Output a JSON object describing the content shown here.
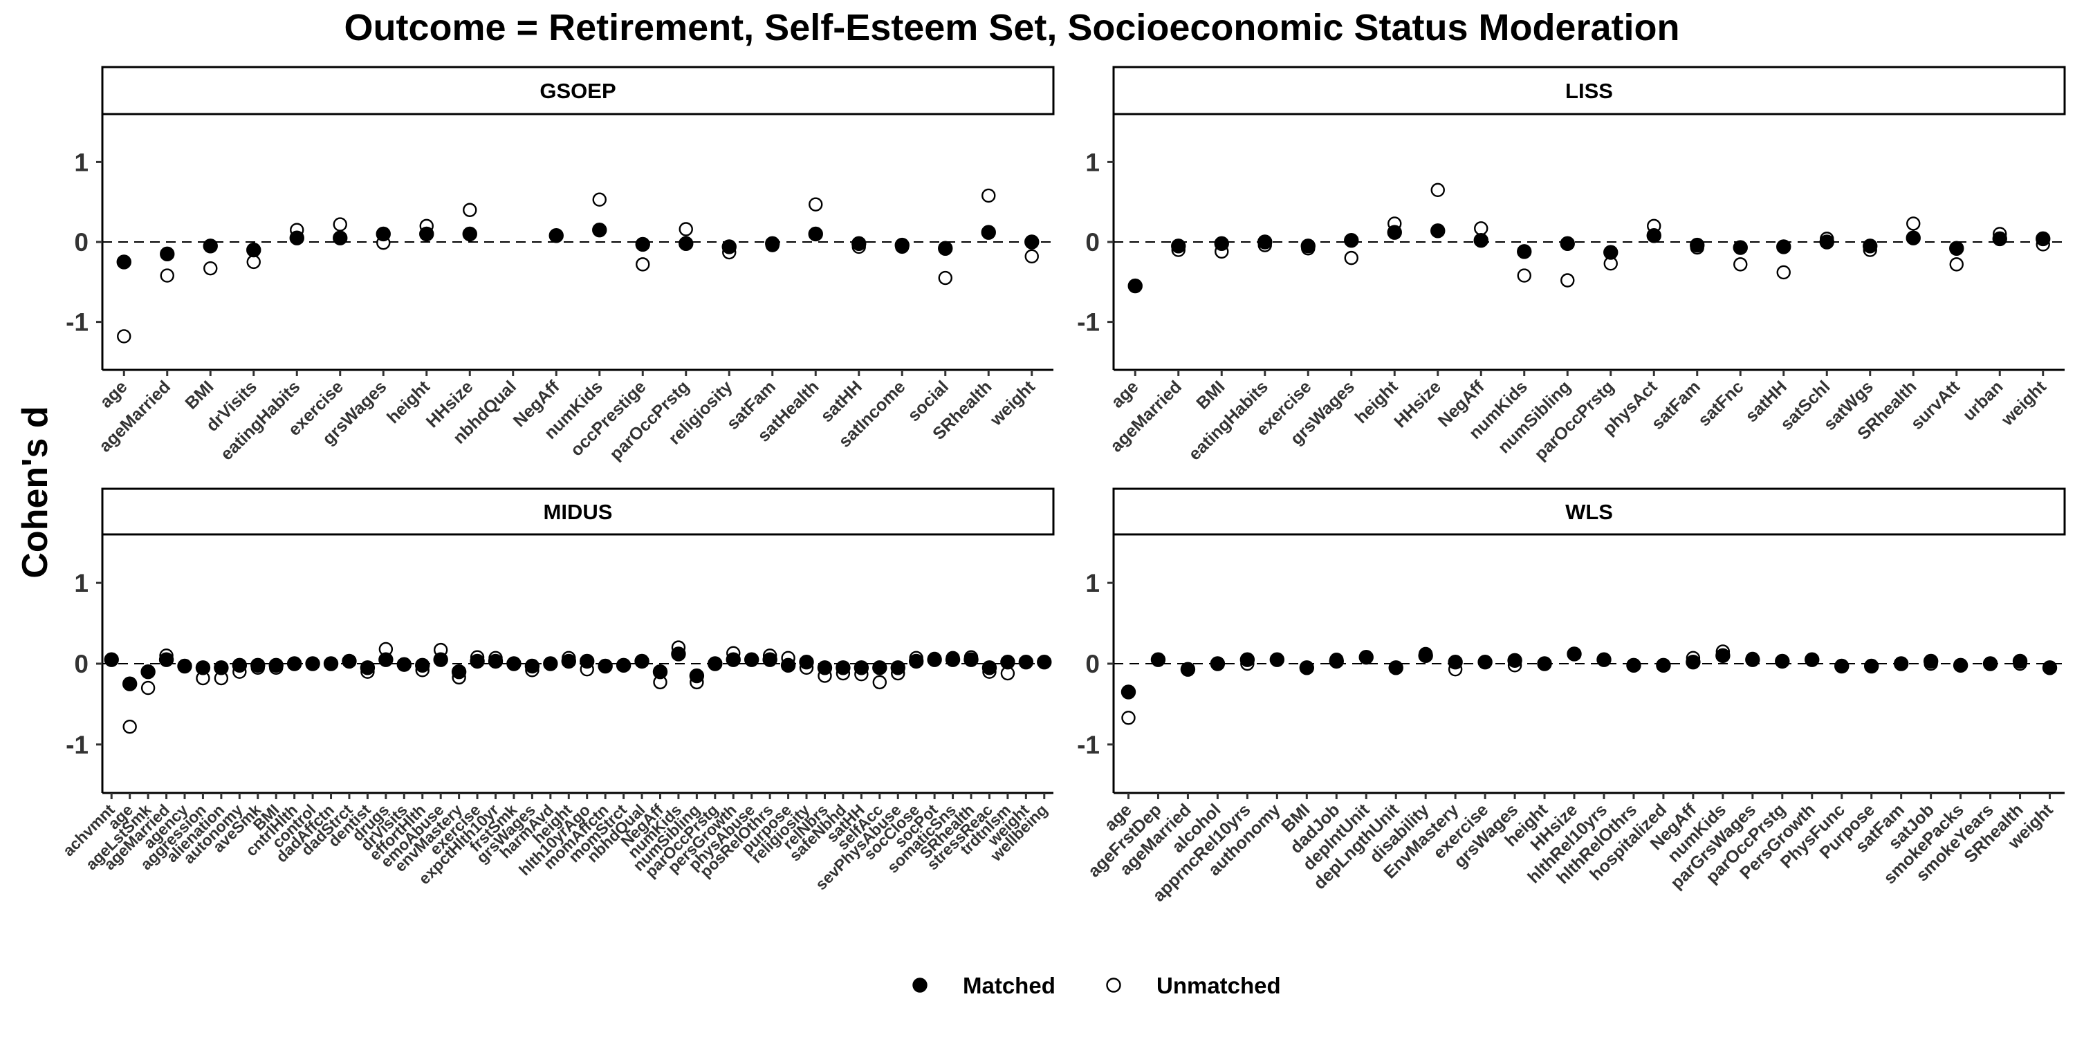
{
  "chart_data": {
    "type": "scatter",
    "title": "Outcome = Retirement, Self-Esteem Set, Socioeconomic Status Moderation",
    "ylabel": "Cohen's d",
    "ylim": [
      -1.6,
      1.6
    ],
    "yticks": [
      -1,
      0,
      1
    ],
    "reference_line": 0,
    "legend": {
      "position": "bottom",
      "entries": [
        "Matched",
        "Unmatched"
      ]
    },
    "series_colors": {
      "Matched": "#000000",
      "Unmatched": "#ffffff"
    },
    "panels": [
      {
        "name": "GSOEP",
        "categories": [
          "age",
          "ageMarried",
          "BMI",
          "drVisits",
          "eatingHabits",
          "exercise",
          "grsWages",
          "height",
          "HHsize",
          "nbhdQual",
          "NegAff",
          "numKids",
          "occPrestige",
          "parOccPrstg",
          "religiosity",
          "satFam",
          "satHealth",
          "satHH",
          "satIncome",
          "social",
          "SRhealth",
          "weight"
        ],
        "series": [
          {
            "name": "Matched",
            "values": [
              -0.25,
              -0.15,
              -0.05,
              -0.1,
              0.05,
              0.05,
              0.1,
              0.1,
              0.1,
              null,
              0.08,
              0.15,
              -0.03,
              -0.02,
              -0.06,
              -0.02,
              0.1,
              -0.02,
              -0.04,
              -0.08,
              0.12,
              0.0
            ]
          },
          {
            "name": "Unmatched",
            "values": [
              -1.18,
              -0.42,
              -0.33,
              -0.25,
              0.15,
              0.22,
              -0.01,
              0.2,
              0.4,
              null,
              null,
              0.53,
              -0.28,
              0.16,
              -0.13,
              -0.04,
              0.47,
              -0.06,
              -0.06,
              -0.45,
              0.58,
              -0.18
            ]
          }
        ]
      },
      {
        "name": "LISS",
        "categories": [
          "age",
          "ageMarried",
          "BMI",
          "eatingHabits",
          "exercise",
          "grsWages",
          "height",
          "HHsize",
          "NegAff",
          "numKids",
          "numSibling",
          "parOccPrstg",
          "physAct",
          "satFam",
          "satFnc",
          "satHH",
          "satSchl",
          "satWgs",
          "SRhealth",
          "survAtt",
          "urban",
          "weight"
        ],
        "series": [
          {
            "name": "Matched",
            "values": [
              -0.55,
              -0.05,
              -0.02,
              0.0,
              -0.05,
              0.02,
              0.12,
              0.14,
              0.02,
              -0.12,
              -0.02,
              -0.13,
              0.08,
              -0.04,
              -0.07,
              -0.06,
              0.0,
              -0.05,
              0.05,
              -0.08,
              0.04,
              0.04
            ]
          },
          {
            "name": "Unmatched",
            "values": [
              null,
              -0.1,
              -0.12,
              -0.04,
              -0.08,
              -0.2,
              0.23,
              0.65,
              0.17,
              -0.42,
              -0.48,
              -0.27,
              0.2,
              -0.07,
              -0.28,
              -0.38,
              0.04,
              -0.1,
              0.23,
              -0.28,
              0.1,
              -0.03
            ]
          }
        ]
      },
      {
        "name": "MIDUS",
        "categories": [
          "achvmnt",
          "age",
          "ageLstSmk",
          "ageMarried",
          "agency",
          "aggression",
          "alienation",
          "autonomy",
          "aveSmk",
          "BMI",
          "cntrlHlth",
          "control",
          "dadAffctn",
          "dadStrct",
          "dentist",
          "drugs",
          "drVisits",
          "effortHlth",
          "emoAbuse",
          "envMastery",
          "exercise",
          "expctHlth10yr",
          "frstSmk",
          "grsWages",
          "harmAvd",
          "height",
          "hlth10yrAgo",
          "momAffctn",
          "momStrct",
          "nbhdQual",
          "NegAff",
          "numKids",
          "numSibling",
          "parOccPrstg",
          "persGrowth",
          "physAbuse",
          "posRelOthrs",
          "purpose",
          "religiosity",
          "relNbrs",
          "safeNbhd",
          "satHH",
          "selfAcc",
          "sevPhysAbuse",
          "socClose",
          "socPot",
          "somaticSns",
          "SRhealth",
          "stressReac",
          "trdtnlsm",
          "weight",
          "wellbeing"
        ],
        "series": [
          {
            "name": "Matched",
            "values": [
              0.05,
              -0.25,
              -0.1,
              0.05,
              -0.03,
              -0.05,
              -0.05,
              -0.02,
              -0.02,
              -0.02,
              0.0,
              0.0,
              0.0,
              0.03,
              -0.05,
              0.05,
              -0.01,
              -0.02,
              0.05,
              -0.1,
              0.03,
              0.03,
              0.0,
              -0.03,
              0.0,
              0.03,
              0.03,
              -0.03,
              -0.02,
              0.03,
              -0.1,
              0.12,
              -0.15,
              0.0,
              0.05,
              0.05,
              0.05,
              -0.02,
              0.02,
              -0.05,
              -0.05,
              -0.05,
              -0.05,
              -0.05,
              0.03,
              0.05,
              0.05,
              0.05,
              -0.05,
              0.02,
              0.02,
              0.02
            ]
          },
          {
            "name": "Unmatched",
            "values": [
              null,
              -0.78,
              -0.3,
              0.1,
              null,
              -0.18,
              -0.18,
              -0.1,
              -0.05,
              -0.05,
              null,
              null,
              null,
              null,
              -0.1,
              0.18,
              null,
              -0.08,
              0.17,
              -0.17,
              0.08,
              0.07,
              null,
              -0.08,
              null,
              0.07,
              -0.07,
              null,
              null,
              null,
              -0.23,
              0.2,
              -0.23,
              0.0,
              0.13,
              0.05,
              0.1,
              0.07,
              -0.05,
              -0.15,
              -0.12,
              -0.13,
              -0.23,
              -0.12,
              0.07,
              0.06,
              0.07,
              0.08,
              -0.1,
              -0.12,
              null,
              null
            ]
          }
        ]
      },
      {
        "name": "WLS",
        "categories": [
          "age",
          "ageFrstDep",
          "ageMarried",
          "alcohol",
          "apprncRel10yrs",
          "authonomy",
          "BMI",
          "dadJob",
          "depIntUnit",
          "depLngthUnit",
          "disability",
          "EnvMastery",
          "exercise",
          "grsWages",
          "height",
          "HHsize",
          "hlthRel10yrs",
          "hlthRelOthrs",
          "hospitalized",
          "NegAff",
          "numKids",
          "parGrsWages",
          "parOccPrstg",
          "PersGrowth",
          "PhysFunc",
          "Purpose",
          "satFam",
          "satJob",
          "smokePacks",
          "smokeYears",
          "SRhealth",
          "weight"
        ],
        "series": [
          {
            "name": "Matched",
            "values": [
              -0.35,
              0.05,
              -0.07,
              0.0,
              0.05,
              0.05,
              -0.05,
              0.03,
              0.08,
              -0.05,
              0.1,
              0.02,
              0.02,
              0.04,
              0.0,
              0.12,
              0.05,
              -0.02,
              -0.02,
              0.02,
              0.1,
              0.05,
              0.03,
              0.05,
              -0.03,
              -0.03,
              0.0,
              0.03,
              -0.02,
              0.0,
              0.03,
              -0.05
            ]
          },
          {
            "name": "Unmatched",
            "values": [
              -0.67,
              0.05,
              null,
              0.0,
              0.0,
              0.05,
              null,
              0.05,
              0.08,
              null,
              0.12,
              -0.07,
              0.02,
              -0.02,
              0.0,
              0.12,
              0.05,
              -0.02,
              -0.02,
              0.07,
              0.15,
              0.06,
              0.03,
              0.05,
              -0.03,
              -0.03,
              0.0,
              0.0,
              -0.02,
              0.0,
              0.0,
              -0.05
            ]
          }
        ]
      }
    ]
  }
}
